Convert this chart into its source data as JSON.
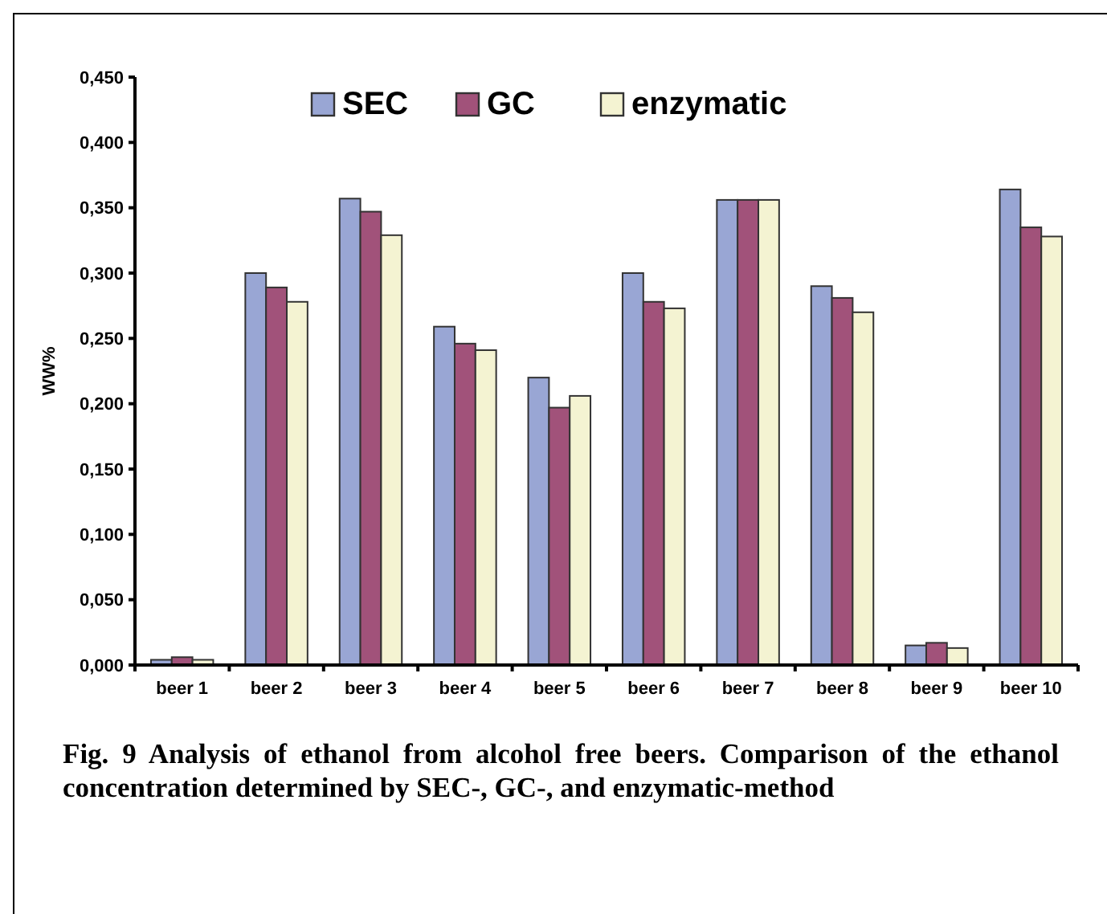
{
  "chart_data": {
    "type": "bar",
    "ylabel": "WW%",
    "categories": [
      "beer 1",
      "beer 2",
      "beer 3",
      "beer 4",
      "beer 5",
      "beer 6",
      "beer 7",
      "beer 8",
      "beer 9",
      "beer 10"
    ],
    "series": [
      {
        "name": "SEC",
        "color": "#99a6d4",
        "values": [
          0.004,
          0.3,
          0.357,
          0.259,
          0.22,
          0.3,
          0.356,
          0.29,
          0.015,
          0.364
        ]
      },
      {
        "name": "GC",
        "color": "#a1527a",
        "values": [
          0.006,
          0.289,
          0.347,
          0.246,
          0.197,
          0.278,
          0.356,
          0.281,
          0.017,
          0.335
        ]
      },
      {
        "name": "enzymatic",
        "color": "#f4f3d2",
        "values": [
          0.004,
          0.278,
          0.329,
          0.241,
          0.206,
          0.273,
          0.356,
          0.27,
          0.013,
          0.328
        ]
      }
    ],
    "ylim": [
      0,
      0.45
    ],
    "yticks": [
      {
        "value": 0,
        "label": "0,000"
      },
      {
        "value": 0.05,
        "label": "0,050"
      },
      {
        "value": 0.1,
        "label": "0,100"
      },
      {
        "value": 0.15,
        "label": "0,150"
      },
      {
        "value": 0.2,
        "label": "0,200"
      },
      {
        "value": 0.25,
        "label": "0,250"
      },
      {
        "value": 0.3,
        "label": "0,300"
      },
      {
        "value": 0.35,
        "label": "0,350"
      },
      {
        "value": 0.4,
        "label": "0,400"
      },
      {
        "value": 0.45,
        "label": "0,450"
      }
    ],
    "legend": "top",
    "annotations": [
      "Fig. 9  Analysis of ethanol from alcohol free beers. Comparison of the ethanol concentration determined by SEC-, GC-, and enzymatic-method"
    ]
  }
}
